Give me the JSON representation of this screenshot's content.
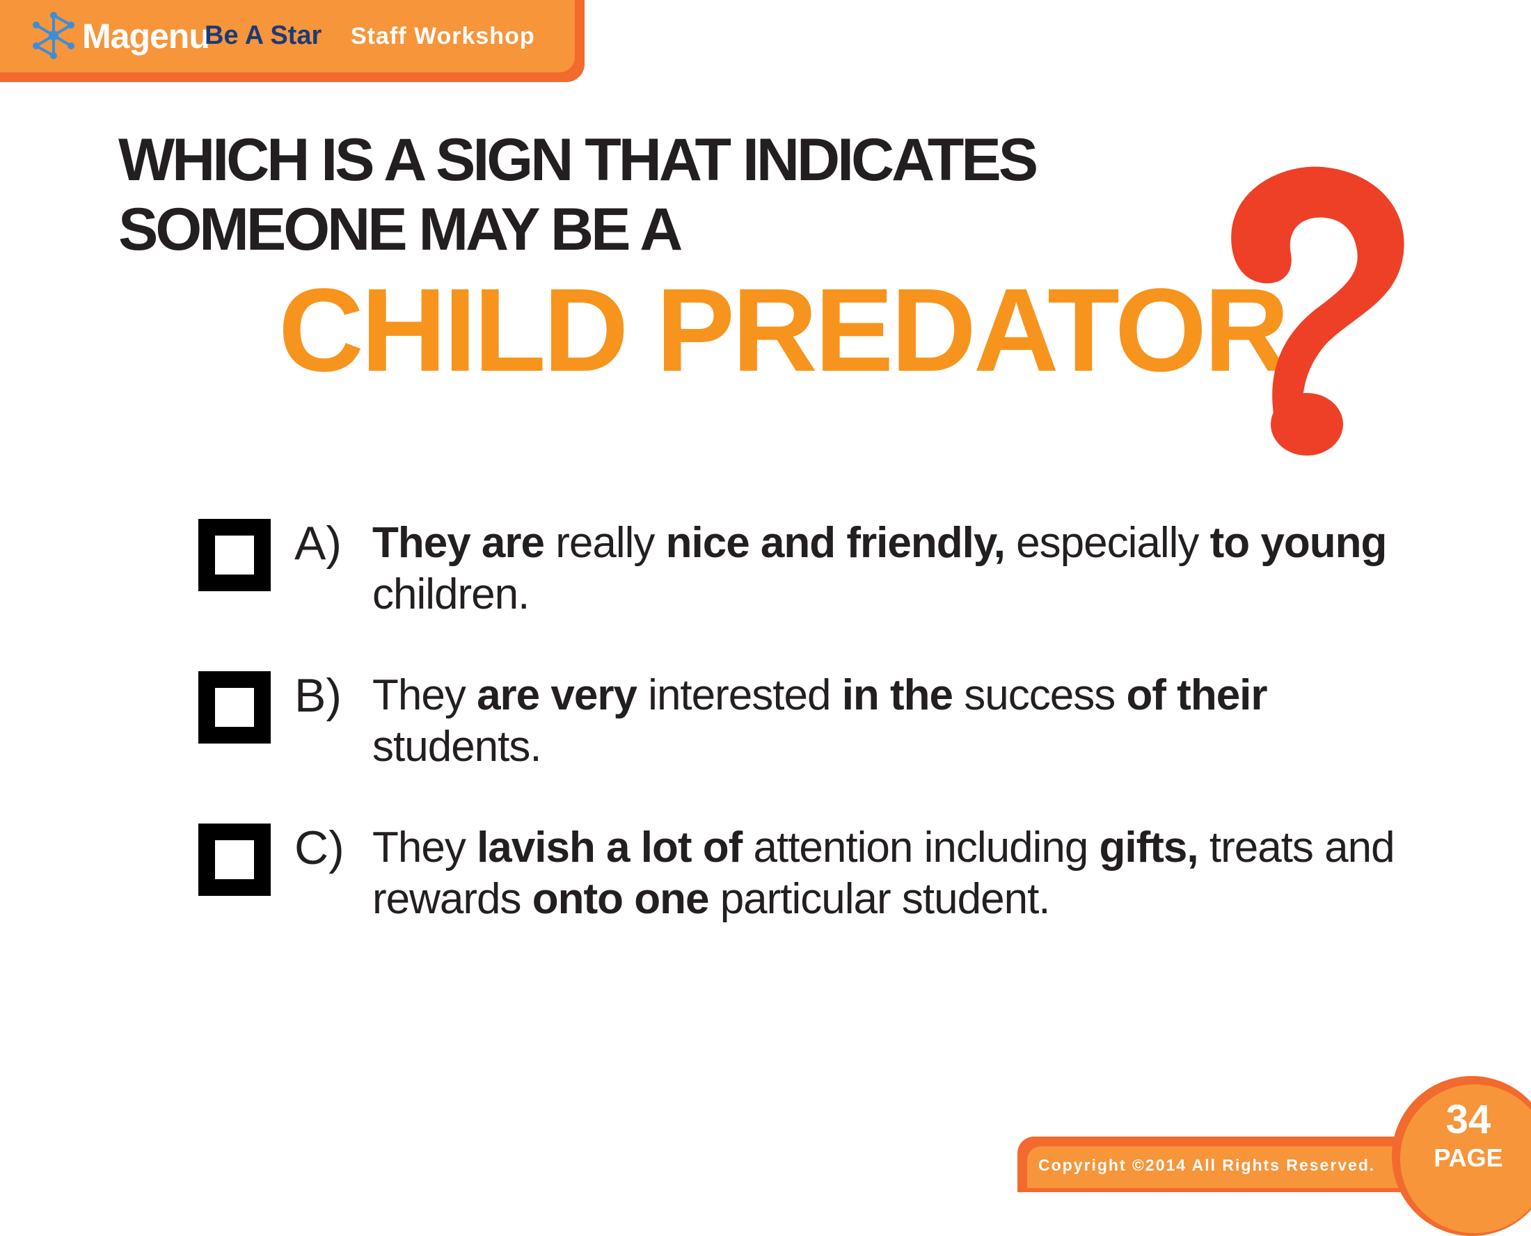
{
  "header": {
    "logo_text": "Magenu",
    "title": "Be A Star",
    "subtitle": "Staff Workshop"
  },
  "question": {
    "line1": "WHICH IS A SIGN THAT INDICATES",
    "line2": "SOMEONE MAY BE A",
    "emphasis": "CHILD PREDATOR"
  },
  "options": [
    {
      "letter": "A)",
      "checked": false,
      "segments": [
        {
          "t": "They are",
          "b": true
        },
        {
          "t": " really ",
          "b": false
        },
        {
          "t": "nice and friendly,",
          "b": true
        },
        {
          "t": " especially ",
          "b": false
        },
        {
          "t": "to young",
          "b": true
        },
        {
          "t": " children.",
          "b": false
        }
      ]
    },
    {
      "letter": "B)",
      "checked": false,
      "segments": [
        {
          "t": "They ",
          "b": false
        },
        {
          "t": "are very",
          "b": true
        },
        {
          "t": " interested ",
          "b": false
        },
        {
          "t": "in the",
          "b": true
        },
        {
          "t": " success ",
          "b": false
        },
        {
          "t": "of their",
          "b": true
        },
        {
          "t": " students.",
          "b": false
        }
      ]
    },
    {
      "letter": "C)",
      "checked": false,
      "segments": [
        {
          "t": "They ",
          "b": false
        },
        {
          "t": "lavish a lot of",
          "b": true
        },
        {
          "t": " attention including ",
          "b": false
        },
        {
          "t": "gifts,",
          "b": true
        },
        {
          "t": " treats and rewards ",
          "b": false
        },
        {
          "t": "onto one",
          "b": true
        },
        {
          "t": " particular student.",
          "b": false
        }
      ]
    }
  ],
  "footer": {
    "copyright": "Copyright ©2014 All Rights Reserved.",
    "page_number": "34",
    "page_label": "PAGE"
  },
  "colors": {
    "orange": "#f7953a",
    "orange_dark": "#f26a2e",
    "emphasis_orange": "#f7941d",
    "question_mark_red": "#ee4027",
    "title_navy": "#1b3a78",
    "logo_blue": "#3b8ed8"
  },
  "icons": {
    "logo": "magenu-star-network-icon",
    "question_mark": "question-mark-icon",
    "checkbox": "empty-checkbox-icon"
  }
}
